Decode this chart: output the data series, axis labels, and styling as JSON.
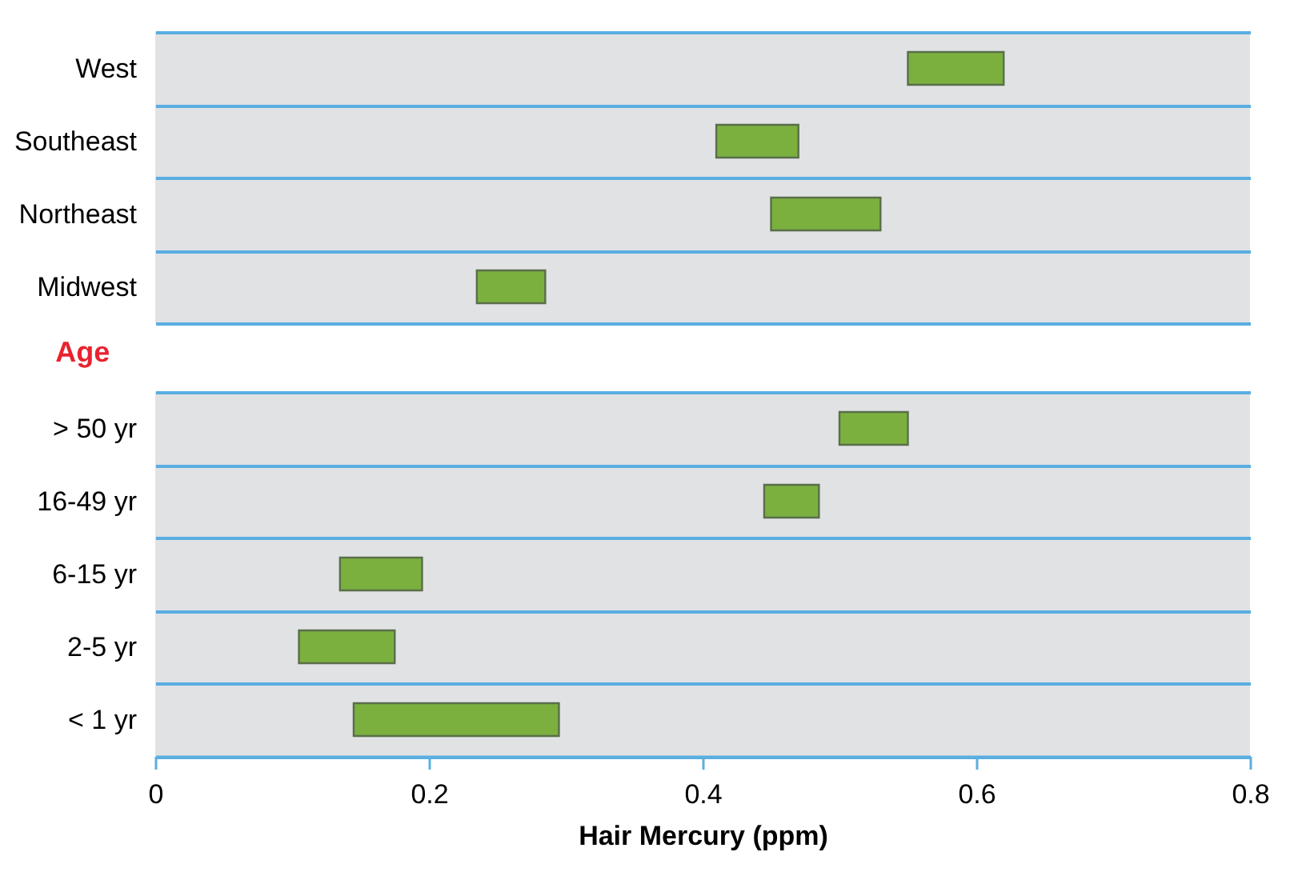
{
  "chart_data": [
    {
      "type": "bar",
      "orientation": "horizontal",
      "categories": [
        "West",
        "Southeast",
        "Northeast",
        "Midwest"
      ],
      "base": [
        0.55,
        0.41,
        0.45,
        0.235
      ],
      "values": [
        0.07,
        0.06,
        0.08,
        0.05
      ],
      "color": "#7bb03f",
      "xlim": [
        0,
        0.8
      ],
      "tick_labels": "y",
      "grid": "y",
      "legend": false
    },
    {
      "type": "bar",
      "orientation": "horizontal",
      "title": "Age",
      "xlabel": "Hair Mercury (ppm)",
      "categories": [
        "> 50 yr",
        "16-49 yr",
        "6-15 yr",
        "2-5 yr",
        "< 1 yr"
      ],
      "base": [
        0.5,
        0.445,
        0.135,
        0.105,
        0.145
      ],
      "values": [
        0.05,
        0.04,
        0.06,
        0.07,
        0.15
      ],
      "color": "#7bb03f",
      "xlim": [
        0,
        0.8
      ],
      "xticks": [
        0,
        0.2,
        0.4,
        0.6,
        0.8
      ],
      "grid": "y",
      "legend": false
    }
  ]
}
